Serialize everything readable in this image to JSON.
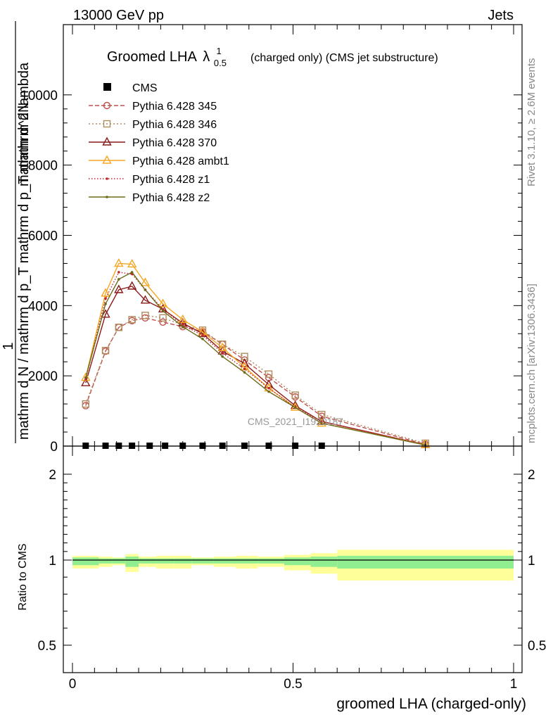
{
  "header": {
    "energy_label": "13000 GeV pp",
    "category_label": "Jets"
  },
  "side_labels": {
    "rivet": "Rivet 3.1.10, ≥ 2.6M events",
    "mcplots": "mcplots.cern.ch [arXiv:1306.3436]"
  },
  "chart_data": [
    {
      "type": "line",
      "title_main": "Groomed LHA",
      "title_symbol": "λ",
      "title_sup": "1",
      "title_sub": "0.5",
      "title_rest": "(charged only) (CMS jet substructure)",
      "analysis_label": "CMS_2021_I1920187",
      "ylabel_line1": "1",
      "ylabel_line2": "mathrm d N / mathrm d p_T mathrm d p_T mathrm d lambda",
      "ylabel_num": "mathrm d^2N",
      "xlim": [
        0,
        1
      ],
      "ylim": [
        0,
        12000
      ],
      "ytick_labels": [
        "0",
        "2000",
        "4000",
        "6000",
        "8000",
        "10000"
      ],
      "yticks": [
        0,
        2000,
        4000,
        6000,
        8000,
        10000
      ],
      "legend_position": "top-left",
      "data_points": {
        "name": "CMS",
        "color": "#000000",
        "x": [
          0.03,
          0.075,
          0.105,
          0.135,
          0.175,
          0.21,
          0.25,
          0.295,
          0.34,
          0.39,
          0.445,
          0.505,
          0.565
        ],
        "y": [
          0,
          0,
          0,
          0,
          0,
          0,
          0,
          0,
          0,
          0,
          0,
          0,
          0
        ]
      },
      "series": [
        {
          "name": "Pythia 6.428 345",
          "color": "#c0504d",
          "dash": "6,3",
          "marker": "circle",
          "x": [
            0.03,
            0.075,
            0.105,
            0.135,
            0.165,
            0.205,
            0.25,
            0.295,
            0.34,
            0.39,
            0.445,
            0.505,
            0.565,
            0.8
          ],
          "y": [
            1150,
            2700,
            3380,
            3570,
            3650,
            3530,
            3400,
            3260,
            2900,
            2450,
            1950,
            1400,
            850,
            50
          ]
        },
        {
          "name": "Pythia 6.428 346",
          "color": "#b08b5e",
          "dash": "2,3",
          "marker": "square",
          "x": [
            0.03,
            0.075,
            0.105,
            0.135,
            0.165,
            0.205,
            0.25,
            0.295,
            0.34,
            0.39,
            0.445,
            0.505,
            0.565,
            0.8
          ],
          "y": [
            1200,
            2720,
            3380,
            3600,
            3720,
            3650,
            3450,
            3300,
            2900,
            2550,
            2050,
            1450,
            900,
            80
          ]
        },
        {
          "name": "Pythia 6.428 370",
          "color": "#8b1a1a",
          "dash": "",
          "marker": "triangle",
          "x": [
            0.03,
            0.075,
            0.105,
            0.135,
            0.165,
            0.205,
            0.25,
            0.295,
            0.34,
            0.39,
            0.445,
            0.505,
            0.565,
            0.8
          ],
          "y": [
            1800,
            3750,
            4450,
            4550,
            4150,
            3900,
            3500,
            3200,
            2700,
            2350,
            1750,
            1150,
            700,
            40
          ]
        },
        {
          "name": "Pythia 6.428 ambt1",
          "color": "#f5a623",
          "dash": "",
          "marker": "triangle",
          "x": [
            0.03,
            0.075,
            0.105,
            0.135,
            0.165,
            0.205,
            0.25,
            0.295,
            0.34,
            0.39,
            0.445,
            0.505,
            0.565,
            0.8
          ],
          "y": [
            1950,
            4350,
            5200,
            5180,
            4650,
            4050,
            3600,
            3250,
            2800,
            2250,
            1650,
            1100,
            650,
            40
          ]
        },
        {
          "name": "Pythia 6.428 z1",
          "color": "#c0272d",
          "dash": "1.5,2.5",
          "marker": "dot",
          "x": [
            0.03,
            0.075,
            0.105,
            0.135,
            0.165,
            0.205,
            0.25,
            0.295,
            0.34,
            0.39,
            0.445,
            0.505,
            0.565,
            0.8
          ],
          "y": [
            1900,
            4200,
            4950,
            4900,
            4450,
            3900,
            3450,
            3150,
            2650,
            2200,
            1650,
            1100,
            700,
            40
          ]
        },
        {
          "name": "Pythia 6.428 z2",
          "color": "#6b6b1a",
          "dash": "",
          "marker": "dot",
          "x": [
            0.03,
            0.075,
            0.105,
            0.135,
            0.165,
            0.205,
            0.25,
            0.295,
            0.34,
            0.39,
            0.445,
            0.505,
            0.565,
            0.8
          ],
          "y": [
            1950,
            4050,
            4750,
            4950,
            4450,
            3850,
            3400,
            3050,
            2550,
            2100,
            1550,
            1100,
            650,
            30
          ]
        }
      ]
    },
    {
      "type": "ratio",
      "ylabel": "Ratio to CMS",
      "xlabel": "groomed LHA (charged-only)",
      "xlim": [
        0,
        1
      ],
      "xtick_labels": [
        "0",
        "0.5",
        "1"
      ],
      "xticks": [
        0,
        0.5,
        1
      ],
      "ytick_labels": [
        "0.5",
        "1",
        "2"
      ],
      "yticks": [
        0.5,
        1,
        2
      ],
      "ylim": [
        0.35,
        2.35
      ],
      "reference": 1,
      "bands": {
        "bin_edges": [
          0,
          0.06,
          0.09,
          0.12,
          0.15,
          0.19,
          0.23,
          0.27,
          0.32,
          0.37,
          0.42,
          0.48,
          0.54,
          0.6,
          1.0
        ],
        "inner": [
          0.03,
          0.02,
          0.02,
          0.04,
          0.02,
          0.02,
          0.02,
          0.02,
          0.02,
          0.02,
          0.02,
          0.03,
          0.04,
          0.05
        ],
        "outer": [
          0.05,
          0.04,
          0.03,
          0.07,
          0.04,
          0.05,
          0.05,
          0.03,
          0.04,
          0.05,
          0.04,
          0.06,
          0.08,
          0.12
        ],
        "inner_color": "#90ee90",
        "outer_color": "#ffff99"
      }
    }
  ]
}
